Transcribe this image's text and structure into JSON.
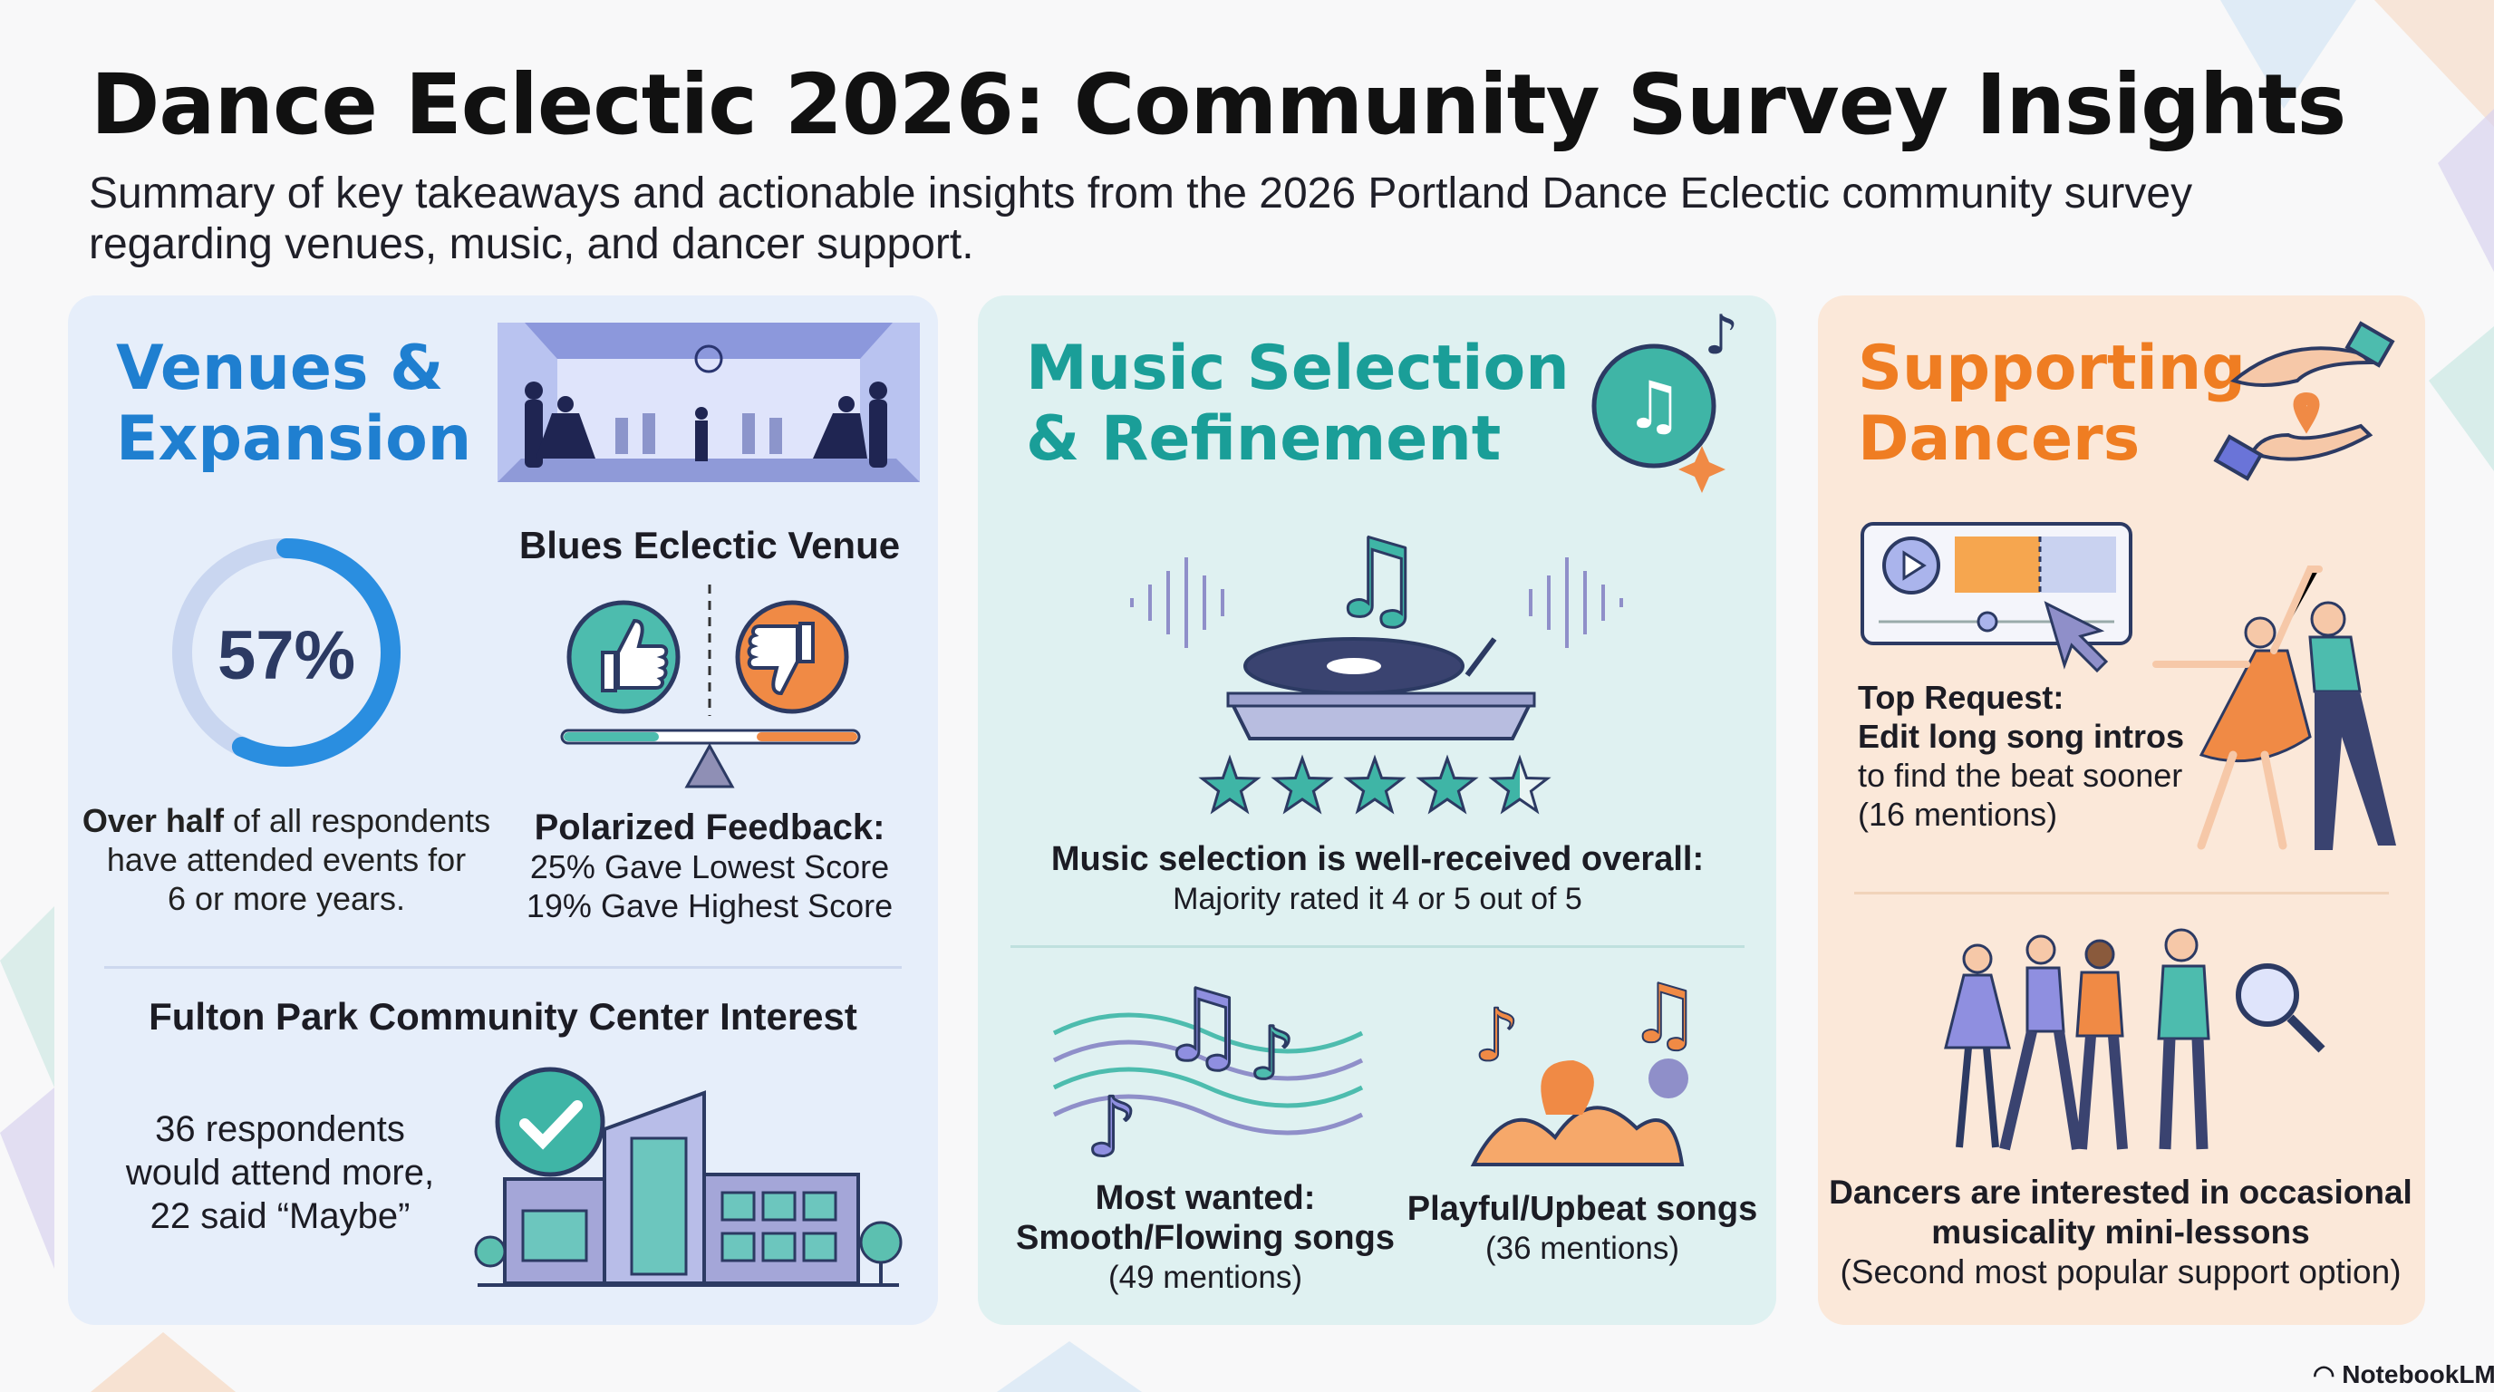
{
  "header": {
    "title": "Dance Eclectic 2026: Community Survey Insights",
    "subtitle": "Summary of key takeaways and actionable insights from the 2026 Portland Dance Eclectic community survey regarding venues, music, and dancer support."
  },
  "colors": {
    "venues": "#1f7fd0",
    "music": "#1a9e98",
    "support": "#ef7d22",
    "dark": "#2c3a63"
  },
  "venues": {
    "title_line1": "Venues &",
    "title_line2": "Expansion",
    "tenure": {
      "percent_label": "57%",
      "percent_value": 57,
      "bold": "Over half",
      "line1_rest": " of all respondents",
      "line2": "have attended events for",
      "line3": "6 or more years."
    },
    "blues": {
      "heading": "Blues Eclectic Venue",
      "feedback_heading": "Polarized Feedback:",
      "lowest": "25% Gave Lowest Score",
      "highest": "19% Gave Highest Score",
      "icons": [
        "thumbs-up-icon",
        "thumbs-down-icon",
        "balance-scale-icon"
      ]
    },
    "fulton": {
      "heading": "Fulton Park Community Center Interest",
      "line1": "36 respondents",
      "line2": "would attend more,",
      "line3": "22 said “Maybe”",
      "icons": [
        "check-icon",
        "building-icon"
      ]
    }
  },
  "music": {
    "title_line1": "Music Selection",
    "title_line2": "& Refinement",
    "rating": {
      "heading": "Music selection is well-received overall:",
      "sub": "Majority rated it 4 or 5 out of 5",
      "stars": 4.5,
      "max_stars": 5
    },
    "smooth": {
      "line1": "Most wanted:",
      "line2": "Smooth/Flowing songs",
      "line3": "(49 mentions)"
    },
    "playful": {
      "line1": "Playful/Upbeat songs",
      "line2": "(36 mentions)"
    }
  },
  "support": {
    "title_line1": "Supporting",
    "title_line2": "Dancers",
    "top": {
      "line1": "Top Request:",
      "line2": "Edit long song intros",
      "line3": "to find the beat sooner",
      "line4": "(16 mentions)"
    },
    "lessons": {
      "line1": "Dancers are interested in occasional",
      "line2": "musicality mini-lessons",
      "line3": "(Second most popular support option)"
    }
  },
  "footer": {
    "brand": "NotebookLM"
  }
}
